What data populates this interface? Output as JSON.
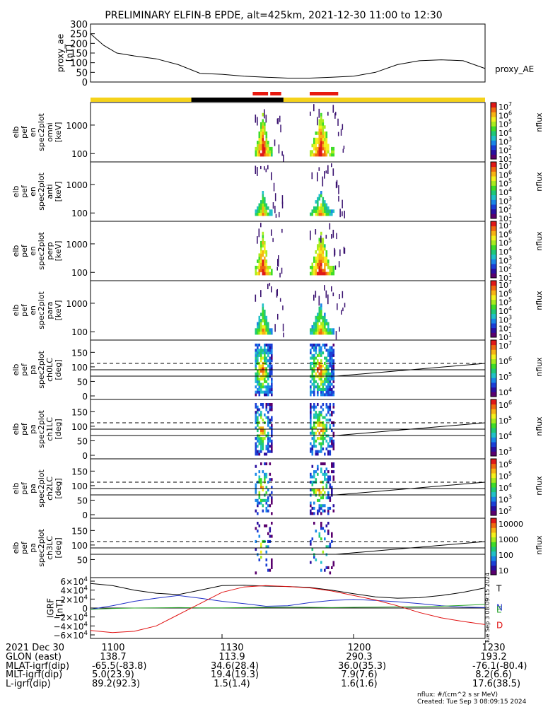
{
  "title": "PRELIMINARY ELFIN-B EPDE, alt=425km, 2021-12-30 11:00 to 12:30",
  "colors": {
    "sci_bar": "#f5d21a",
    "black_bar": "#000000",
    "red_marks": "#e8190f",
    "ae_line": "#000000",
    "igrf_T": "#000000",
    "igrf_N": "#1f2fc8",
    "igrf_E": "#2aa52a",
    "igrf_D": "#e01010"
  },
  "ae_panel": {
    "ylabel": "proxy_ae\n[nT]",
    "series_name": "proxy_AE",
    "yticks": [
      "300",
      "250",
      "200",
      "150",
      "100",
      "50",
      "0"
    ],
    "ylim": [
      0,
      300
    ]
  },
  "spec_panels": [
    {
      "ylabel": [
        "elb",
        "pef",
        "en",
        "spec2plot",
        "omni",
        "[keV]"
      ],
      "yticks": [
        "1000",
        "100"
      ],
      "cbar_ticks": [
        "10^7",
        "10^6",
        "10^5",
        "10^4",
        "10^3",
        "10^2",
        "10^1"
      ],
      "cbar_label": "nflux"
    },
    {
      "ylabel": [
        "elb",
        "pef",
        "en",
        "spec2plot",
        "anti",
        "[keV]"
      ],
      "yticks": [
        "1000",
        "100"
      ],
      "cbar_ticks": [
        "10^7",
        "10^6",
        "10^5",
        "10^4",
        "10^3",
        "10^2",
        "10^1"
      ],
      "cbar_label": "nflux"
    },
    {
      "ylabel": [
        "elb",
        "pef",
        "en",
        "spec2plot",
        "perp",
        "[keV]"
      ],
      "yticks": [
        "1000",
        "100"
      ],
      "cbar_ticks": [
        "10^7",
        "10^6",
        "10^5",
        "10^4",
        "10^3",
        "10^2",
        "10^1"
      ],
      "cbar_label": "nflux"
    },
    {
      "ylabel": [
        "elb",
        "pef",
        "en",
        "spec2plot",
        "para",
        "[keV]"
      ],
      "yticks": [
        "1000",
        "100"
      ],
      "cbar_ticks": [
        "10^7",
        "10^6",
        "10^5",
        "10^4",
        "10^3",
        "10^2",
        "10^1"
      ],
      "cbar_label": "nflux"
    }
  ],
  "pa_panels": [
    {
      "ylabel": [
        "elb",
        "pef",
        "pa",
        "spec2plot",
        "ch0LC",
        "[deg]"
      ],
      "yticks": [
        "150",
        "100",
        "50",
        "0"
      ],
      "cbar_ticks": [
        "10^7",
        "10^6",
        "10^5",
        "10^4"
      ],
      "cbar_label": "nflux"
    },
    {
      "ylabel": [
        "elb",
        "pef",
        "pa",
        "spec2plot",
        "ch1LC",
        "[deg]"
      ],
      "yticks": [
        "150",
        "100",
        "50",
        "0"
      ],
      "cbar_ticks": [
        "10^6",
        "10^5",
        "10^4",
        "10^3"
      ],
      "cbar_label": "nflux"
    },
    {
      "ylabel": [
        "elb",
        "pef",
        "pa",
        "spec2plot",
        "ch2LC",
        "[deg]"
      ],
      "yticks": [
        "150",
        "100",
        "50",
        "0"
      ],
      "cbar_ticks": [
        "10^6",
        "10^5",
        "10^4",
        "10^3",
        "10^2"
      ],
      "cbar_label": "nflux"
    },
    {
      "ylabel": [
        "elb",
        "pef",
        "pa",
        "spec2plot",
        "ch3LC",
        "[deg]"
      ],
      "yticks": [
        "150",
        "100",
        "50"
      ],
      "cbar_ticks": [
        "10000",
        "1000",
        "100",
        "10"
      ],
      "cbar_label": "nflux"
    }
  ],
  "igrf_panel": {
    "ylabel": "IGRF\n[nT]",
    "yticks": [
      "6×10^4",
      "4×10^4",
      "2×10^4",
      "0",
      "−2×10^4",
      "−4×10^4",
      "−6×10^4"
    ],
    "legend": [
      "T",
      "N",
      "E",
      "D"
    ],
    "stamp": "Tue Sep  3 08:09:15 2024"
  },
  "footer": {
    "rows": [
      [
        "2021 Dec 30",
        "1100",
        "1130",
        "1200",
        "1230"
      ],
      [
        "GLON (east)",
        "138.7",
        "113.9",
        "290.3",
        "193.2"
      ],
      [
        "MLAT-igrf(dip)",
        "-65.5(-83.8)",
        "34.6(28.4)",
        "36.0(35.3)",
        "-76.1(-80.4)"
      ],
      [
        "MLT-igrf(dip)",
        "5.0(23.9)",
        "19.4(19.3)",
        "7.9(7.6)",
        "8.2(6.6)"
      ],
      [
        "L-igrf(dip)",
        "89.2(92.3)",
        "1.5(1.4)",
        "1.6(1.6)",
        "17.6(38.5)"
      ]
    ],
    "units_note": "nflux: #/(cm^2 s sr MeV)",
    "created": "Created: Tue Sep  3 08:09:15 2024"
  },
  "chart_data": {
    "type": "line",
    "title": "PRELIMINARY ELFIN-B EPDE, alt=425km, 2021-12-30 11:00 to 12:30",
    "x_unit": "minutes after 11:00 UT",
    "xlim": [
      0,
      90
    ],
    "xtick_labels": [
      "1100",
      "1130",
      "1200",
      "1230"
    ],
    "proxy_ae": {
      "x": [
        0,
        3,
        6,
        10,
        15,
        20,
        25,
        30,
        35,
        40,
        45,
        50,
        55,
        60,
        65,
        70,
        75,
        80,
        85,
        90
      ],
      "y": [
        250,
        190,
        150,
        135,
        120,
        90,
        45,
        40,
        30,
        25,
        20,
        20,
        25,
        30,
        50,
        90,
        110,
        115,
        110,
        70
      ]
    },
    "science_collection_bar": {
      "yellow_full": [
        0,
        90
      ],
      "black": [
        23,
        44
      ],
      "red": [
        [
          37,
          40.5
        ],
        [
          41,
          43.5
        ],
        [
          50,
          56.5
        ]
      ]
    },
    "flux_bursts_minutes": [
      [
        37.5,
        41.5
      ],
      [
        50,
        55.5
      ]
    ],
    "pa_reference_lines_deg": {
      "dashed": 112,
      "solid": [
        90,
        68
      ]
    },
    "igrf": {
      "x": [
        0,
        5,
        10,
        15,
        20,
        25,
        30,
        35,
        40,
        45,
        50,
        55,
        60,
        65,
        70,
        75,
        80,
        85,
        90
      ],
      "T": [
        55000,
        50000,
        40000,
        33000,
        30000,
        40000,
        50000,
        51000,
        49000,
        48000,
        46000,
        40000,
        32000,
        25000,
        22000,
        23000,
        28000,
        35000,
        45000
      ],
      "N": [
        -3000,
        5000,
        15000,
        22000,
        28000,
        22000,
        15000,
        10000,
        4000,
        5000,
        12000,
        17000,
        19000,
        17000,
        14000,
        10000,
        5000,
        2000,
        1000
      ],
      "E": [
        -3000,
        -1000,
        0,
        500,
        1000,
        500,
        500,
        1000,
        1500,
        2000,
        1500,
        1000,
        1500,
        2000,
        2500,
        3000,
        4000,
        6000,
        8000
      ],
      "D": [
        -50000,
        -55000,
        -52000,
        -40000,
        -15000,
        10000,
        35000,
        47000,
        50000,
        48000,
        45000,
        38000,
        28000,
        18000,
        5000,
        -10000,
        -22000,
        -30000,
        -37000
      ]
    }
  }
}
